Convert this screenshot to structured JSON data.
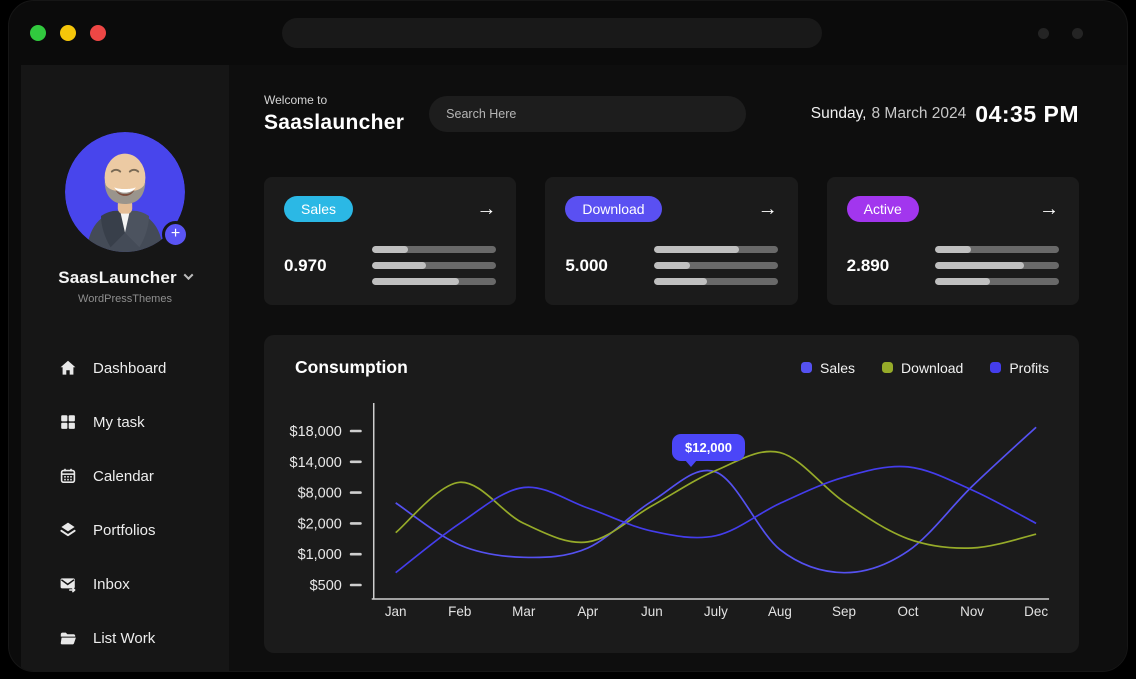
{
  "titlebar": {
    "traffic_lights": {
      "green": "#31c93e",
      "yellow": "#f5c60a",
      "red": "#ee4745"
    },
    "search_value": "",
    "dot_color": "#242424"
  },
  "sidebar": {
    "profile": {
      "name": "SaasLauncher",
      "subtitle": "WordPressThemes",
      "avatar_bg": "#4845ec",
      "plus_icon": "+"
    },
    "nav": [
      {
        "label": "Dashboard",
        "icon": "home-icon"
      },
      {
        "label": "My task",
        "icon": "grid-icon"
      },
      {
        "label": "Calendar",
        "icon": "calendar-icon"
      },
      {
        "label": "Portfolios",
        "icon": "layers-icon"
      },
      {
        "label": "Inbox",
        "icon": "envelope-arrow-icon"
      },
      {
        "label": "List Work",
        "icon": "folder-icon"
      }
    ]
  },
  "header": {
    "welcome": "Welcome to",
    "app_name": "Saaslauncher",
    "search_placeholder": "Search Here",
    "date_day": "Sunday,",
    "date_rest": "8 March 2024",
    "time": "04:35 PM"
  },
  "stats": [
    {
      "label": "Sales",
      "badge_color": "#2bb8e5",
      "value": "0.970",
      "arrow": "→",
      "bars": [
        0.29,
        0.43,
        0.7
      ]
    },
    {
      "label": "Download",
      "badge_color": "#5a50f2",
      "value": "5.000",
      "arrow": "→",
      "bars": [
        0.69,
        0.29,
        0.43
      ]
    },
    {
      "label": "Active",
      "badge_color": "#a236ee",
      "value": "2.890",
      "arrow": "→",
      "bars": [
        0.29,
        0.72,
        0.44
      ]
    }
  ],
  "chart_data": {
    "type": "line",
    "title": "Consumption",
    "legend_position": "top-right",
    "grid": false,
    "categories": [
      "Jan",
      "Feb",
      "Mar",
      "Apr",
      "Jun",
      "July",
      "Aug",
      "Sep",
      "Oct",
      "Nov",
      "Dec"
    ],
    "y_ticks": [
      {
        "label": "$18,000",
        "value": 18000
      },
      {
        "label": "$14,000",
        "value": 14000
      },
      {
        "label": "$8,000",
        "value": 8000
      },
      {
        "label": "$2,000",
        "value": 2000
      },
      {
        "label": "$1,000",
        "value": 1000
      },
      {
        "label": "$500",
        "value": 500
      }
    ],
    "series": [
      {
        "name": "Sales",
        "color": "#5551f1",
        "values": [
          6000,
          1300,
          950,
          1200,
          6300,
          12000,
          1150,
          700,
          1100,
          9200,
          18500
        ]
      },
      {
        "name": "Download",
        "color": "#96ab29",
        "values": [
          1700,
          10000,
          2000,
          1400,
          5400,
          12300,
          15200,
          6200,
          1500,
          1200,
          1650
        ]
      },
      {
        "name": "Profits",
        "color": "#443dec",
        "values": [
          700,
          2000,
          9000,
          5000,
          1750,
          1600,
          5900,
          11000,
          13000,
          8500,
          2000
        ]
      }
    ],
    "tooltip": {
      "text": "$12,000",
      "series": "Sales",
      "category": "July"
    }
  }
}
